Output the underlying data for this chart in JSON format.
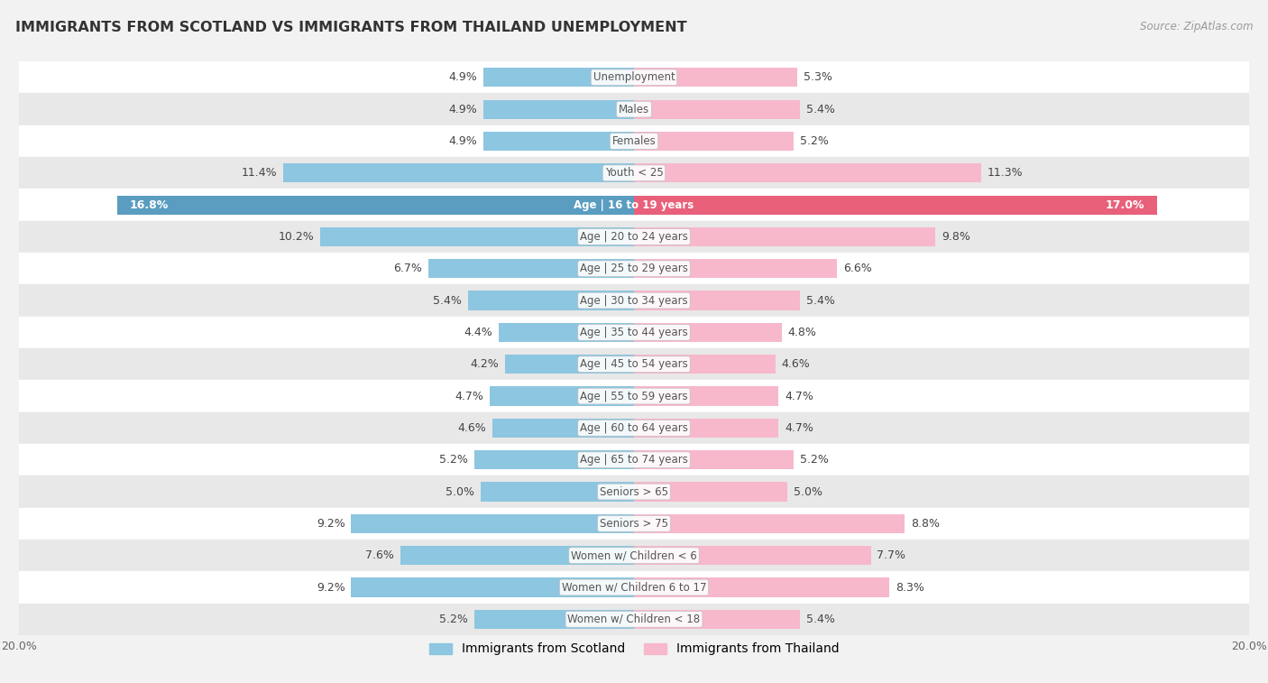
{
  "title": "IMMIGRANTS FROM SCOTLAND VS IMMIGRANTS FROM THAILAND UNEMPLOYMENT",
  "source": "Source: ZipAtlas.com",
  "categories": [
    "Unemployment",
    "Males",
    "Females",
    "Youth < 25",
    "Age | 16 to 19 years",
    "Age | 20 to 24 years",
    "Age | 25 to 29 years",
    "Age | 30 to 34 years",
    "Age | 35 to 44 years",
    "Age | 45 to 54 years",
    "Age | 55 to 59 years",
    "Age | 60 to 64 years",
    "Age | 65 to 74 years",
    "Seniors > 65",
    "Seniors > 75",
    "Women w/ Children < 6",
    "Women w/ Children 6 to 17",
    "Women w/ Children < 18"
  ],
  "scotland_values": [
    4.9,
    4.9,
    4.9,
    11.4,
    16.8,
    10.2,
    6.7,
    5.4,
    4.4,
    4.2,
    4.7,
    4.6,
    5.2,
    5.0,
    9.2,
    7.6,
    9.2,
    5.2
  ],
  "thailand_values": [
    5.3,
    5.4,
    5.2,
    11.3,
    17.0,
    9.8,
    6.6,
    5.4,
    4.8,
    4.6,
    4.7,
    4.7,
    5.2,
    5.0,
    8.8,
    7.7,
    8.3,
    5.4
  ],
  "scotland_color": "#8dc6e0",
  "thailand_color": "#f7b8cc",
  "scotland_highlight": "#5a9dc0",
  "thailand_highlight": "#e8607a",
  "bg_color": "#f2f2f2",
  "row_bg_even": "#ffffff",
  "row_bg_odd": "#e8e8e8",
  "max_value": 20.0,
  "x_ticks": [
    -20,
    -15,
    -10,
    -5,
    0,
    5,
    10,
    15,
    20
  ],
  "x_tick_labels_left": [
    "20.0%",
    "",
    "",
    "",
    ""
  ],
  "x_tick_labels_right": [
    "",
    "",
    "",
    "",
    "20.0%"
  ],
  "legend_scotland": "Immigrants from Scotland",
  "legend_thailand": "Immigrants from Thailand"
}
